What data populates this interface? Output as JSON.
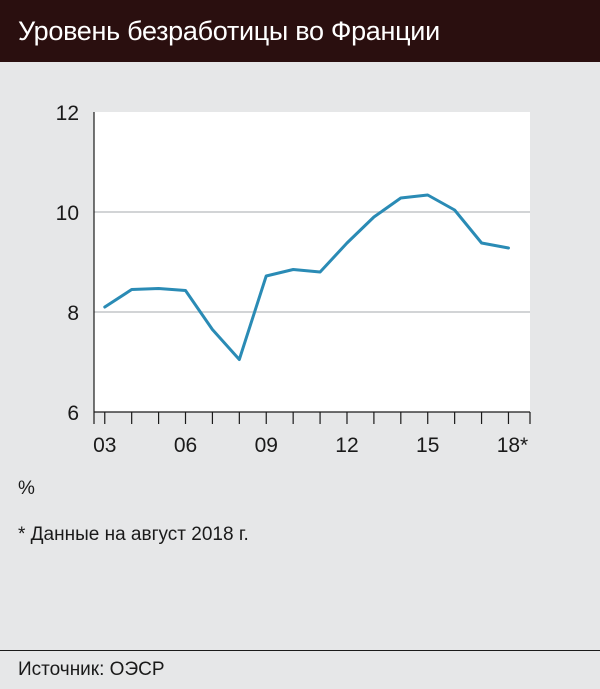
{
  "header": {
    "title": "Уровень безработицы во Франции"
  },
  "chart_data": {
    "type": "line",
    "title": "Уровень безработицы во Франции",
    "unit_label": "%",
    "xlabel": "",
    "ylabel": "",
    "x": [
      2003,
      2004,
      2005,
      2006,
      2007,
      2008,
      2009,
      2010,
      2011,
      2012,
      2013,
      2014,
      2015,
      2016,
      2017,
      2018
    ],
    "x_tick_values": [
      2003,
      2006,
      2009,
      2012,
      2015,
      2018
    ],
    "x_tick_labels": [
      "03",
      "06",
      "09",
      "12",
      "15",
      "18*"
    ],
    "xlim": [
      2002.6,
      2018.8
    ],
    "ylim": [
      6,
      12
    ],
    "y_ticks": [
      6,
      8,
      10,
      12
    ],
    "grid": true,
    "series": [
      {
        "name": "",
        "color": "#2a8bb5",
        "values": [
          8.1,
          8.45,
          8.47,
          8.43,
          7.65,
          7.05,
          8.72,
          8.85,
          8.8,
          9.38,
          9.9,
          10.28,
          10.34,
          10.04,
          9.38,
          9.28
        ]
      }
    ]
  },
  "notes": {
    "unit": "%",
    "footnote": "* Данные на август 2018 г."
  },
  "footer": {
    "source": "Источник: ОЭСР"
  },
  "colors": {
    "title_bg": "#2a0f0f",
    "background": "#e6e7e8",
    "plot_bg": "#ffffff",
    "line": "#2a8bb5"
  }
}
